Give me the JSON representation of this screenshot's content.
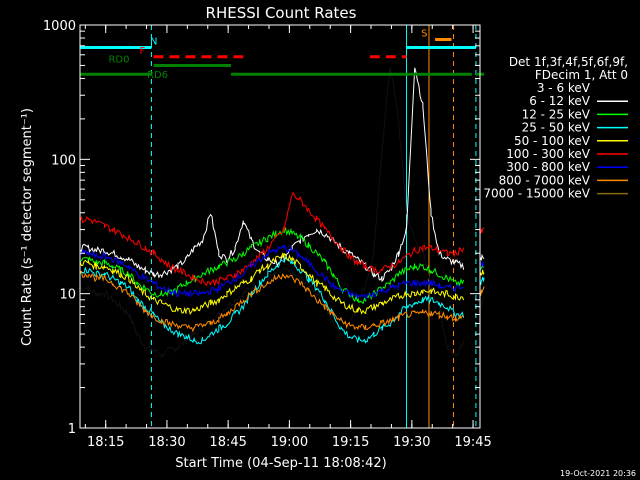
{
  "chart_data": {
    "type": "line",
    "title": "RHESSI Count Rates",
    "xlabel": "Start Time (04-Sep-11 18:08:42)",
    "ylabel": "Count Rate (s⁻¹ detector segment⁻¹)",
    "yscale": "log",
    "ylim": [
      1,
      1000
    ],
    "xlim_minutes": [
      0,
      98
    ],
    "x_ticks": [
      {
        "label": "18:15",
        "minute": 6.3
      },
      {
        "label": "18:30",
        "minute": 21.3
      },
      {
        "label": "18:45",
        "minute": 36.3
      },
      {
        "label": "19:00",
        "minute": 51.3
      },
      {
        "label": "19:15",
        "minute": 66.3
      },
      {
        "label": "19:30",
        "minute": 81.3
      },
      {
        "label": "19:45",
        "minute": 96.3
      }
    ],
    "y_ticks": [
      {
        "label": "1",
        "value": 1
      },
      {
        "label": "10",
        "value": 10
      },
      {
        "label": "100",
        "value": 100
      },
      {
        "label": "1000",
        "value": 1000
      }
    ],
    "legend_header": [
      "Det 1f,3f,4f,5f,6f,9f,",
      "FDecim 1, Att 0"
    ],
    "legend_position": "right",
    "series": [
      {
        "name": "3 - 6 keV",
        "color": "#000000",
        "values": [
          11,
          11,
          10,
          10,
          9,
          8,
          7,
          5,
          4,
          3.8,
          3.5,
          3.8,
          4,
          4.5,
          5,
          5.5,
          6,
          7,
          8,
          9,
          10,
          11,
          12,
          13,
          14,
          15,
          14,
          13,
          12,
          10,
          8,
          6,
          5,
          6,
          8,
          12,
          20,
          120,
          500,
          200,
          40,
          25,
          20,
          12,
          8,
          4,
          3.5,
          4.5,
          null,
          null,
          8,
          9
        ]
      },
      {
        "name": "6 - 12 keV",
        "color": "#ffffff",
        "values": [
          22,
          22,
          21,
          21,
          20,
          19,
          18,
          16,
          15,
          14,
          14,
          15,
          16,
          18,
          22,
          25,
          40,
          20,
          18,
          22,
          35,
          25,
          20,
          18,
          17,
          18,
          22,
          25,
          28,
          30,
          28,
          25,
          22,
          20,
          18,
          16,
          14,
          13,
          15,
          20,
          30,
          500,
          250,
          40,
          20,
          18,
          17,
          16,
          null,
          null,
          18,
          19
        ]
      },
      {
        "name": "12 - 25 keV",
        "color": "#00ff00",
        "values": [
          18,
          18,
          17,
          17,
          16,
          15,
          14,
          12,
          11,
          10,
          10,
          10,
          11,
          12,
          13,
          14,
          15,
          16,
          17,
          18,
          20,
          22,
          24,
          26,
          28,
          30,
          28,
          26,
          23,
          20,
          17,
          14,
          11,
          10,
          9,
          9,
          10,
          11,
          12,
          14,
          15,
          16,
          16,
          15,
          14,
          13,
          12,
          12,
          null,
          null,
          15,
          16
        ]
      },
      {
        "name": "25 - 50 keV",
        "color": "#00ffff",
        "values": [
          15,
          15,
          14,
          14,
          13,
          12,
          11,
          9,
          8,
          7,
          6,
          5.5,
          5,
          4.8,
          4.5,
          4.5,
          5,
          5.5,
          6,
          7,
          8,
          10,
          12,
          14,
          16,
          18,
          17,
          15,
          13,
          11,
          9,
          7,
          5.5,
          4.8,
          4.5,
          4.5,
          5,
          5.5,
          6,
          7,
          8,
          8.5,
          9,
          9,
          8.5,
          8,
          7,
          7,
          null,
          null,
          12,
          13
        ]
      },
      {
        "name": "50 - 100 keV",
        "color": "#ffff00",
        "values": [
          17,
          17,
          16,
          16,
          15,
          14,
          13,
          11,
          10,
          9,
          8.5,
          8,
          7.5,
          7.5,
          7.5,
          8,
          8.5,
          9,
          10,
          11,
          12,
          13,
          15,
          16,
          18,
          19,
          18,
          16,
          14,
          12,
          11,
          9.5,
          8.5,
          8,
          7.5,
          7.5,
          8,
          8.5,
          9,
          9.5,
          10,
          10,
          10.5,
          10.5,
          10,
          10,
          9.5,
          9.5,
          null,
          null,
          14,
          15
        ]
      },
      {
        "name": "100 - 300 keV",
        "color": "#ff0000",
        "values": [
          35,
          36,
          34,
          32,
          30,
          28,
          26,
          24,
          22,
          20,
          18,
          16,
          15,
          14,
          13,
          12.5,
          12,
          12.5,
          13,
          14,
          15,
          17,
          19,
          22,
          26,
          30,
          55,
          50,
          42,
          36,
          30,
          26,
          22,
          19,
          17,
          16,
          15,
          15,
          16,
          17,
          19,
          21,
          22,
          22,
          21,
          20,
          20,
          22,
          null,
          null,
          28,
          30
        ]
      },
      {
        "name": "300 - 800 keV",
        "color": "#0000ff",
        "values": [
          20,
          20,
          19,
          19,
          18,
          17,
          16,
          14,
          13,
          12,
          11,
          10.5,
          10,
          10,
          10,
          10,
          10.5,
          11,
          12,
          13,
          14,
          16,
          18,
          20,
          21,
          22,
          21,
          19,
          17,
          15,
          13,
          11.5,
          10.5,
          10,
          9.5,
          9.5,
          10,
          10.5,
          11,
          11.5,
          12,
          12,
          12,
          12,
          11.5,
          11,
          11,
          11.5,
          null,
          null,
          16,
          17
        ]
      },
      {
        "name": "800 - 7000 keV",
        "color": "#ff8c00",
        "values": [
          14,
          14,
          13,
          13,
          12,
          11,
          10,
          8.5,
          7.5,
          6.8,
          6.3,
          6,
          5.8,
          5.6,
          5.6,
          5.8,
          6,
          6.5,
          7,
          8,
          9,
          10,
          11,
          12,
          13,
          14,
          13,
          12,
          10.5,
          9,
          8,
          7,
          6.3,
          5.8,
          5.6,
          5.6,
          5.8,
          6,
          6.3,
          6.6,
          7,
          7,
          7.2,
          7.2,
          7,
          6.8,
          6.6,
          6.6,
          null,
          null,
          10,
          11
        ]
      },
      {
        "name": "7000 - 15000 keV",
        "color": "#8b6914",
        "values": [
          null
        ]
      }
    ],
    "x_minutes": [
      0,
      2,
      4,
      6,
      8,
      10,
      12,
      14,
      16,
      18,
      20,
      22,
      24,
      26,
      28,
      30,
      32,
      34,
      36,
      38,
      40,
      42,
      44,
      46,
      48,
      50,
      52,
      54,
      56,
      58,
      60,
      62,
      64,
      66,
      68,
      70,
      72,
      74,
      76,
      78,
      80,
      82,
      84,
      86,
      88,
      90,
      92,
      94,
      96,
      97,
      98,
      99
    ],
    "state_bars": [
      {
        "label": "N",
        "color": "#00ffff",
        "segments": [
          [
            0,
            17.5
          ],
          [
            80,
            97
          ]
        ],
        "level": 680
      },
      {
        "label": "F",
        "color": "#ff0000",
        "dashed": true,
        "segments": [
          [
            18,
            40
          ],
          [
            71,
            80
          ]
        ],
        "level": 580
      },
      {
        "label": "RD0",
        "color": "#008000",
        "segments": [
          [
            18,
            37
          ]
        ],
        "level": 500
      },
      {
        "label": "RD6",
        "color": "#008000",
        "segments": [
          [
            0,
            17.5
          ],
          [
            37,
            67
          ],
          [
            67,
            96
          ],
          [
            97,
            99
          ]
        ],
        "level": 430
      },
      {
        "label": "S",
        "color": "#ff8c00",
        "segments": [
          [
            87,
            91
          ]
        ],
        "level": 780
      }
    ],
    "vlines": [
      {
        "minute": 0,
        "color": "#00ffff",
        "style": "solid"
      },
      {
        "minute": 17.5,
        "color": "#00ffff",
        "style": "dashed"
      },
      {
        "minute": 80,
        "color": "#00ffff",
        "style": "solid"
      },
      {
        "minute": 97,
        "color": "#00ffff",
        "style": "dashed"
      },
      {
        "minute": 85.5,
        "color": "#ff8c00",
        "style": "solid"
      },
      {
        "minute": 91.5,
        "color": "#ff8c00",
        "style": "dashed"
      }
    ]
  },
  "footer": {
    "timestamp": "19-Oct-2021 20:36"
  }
}
